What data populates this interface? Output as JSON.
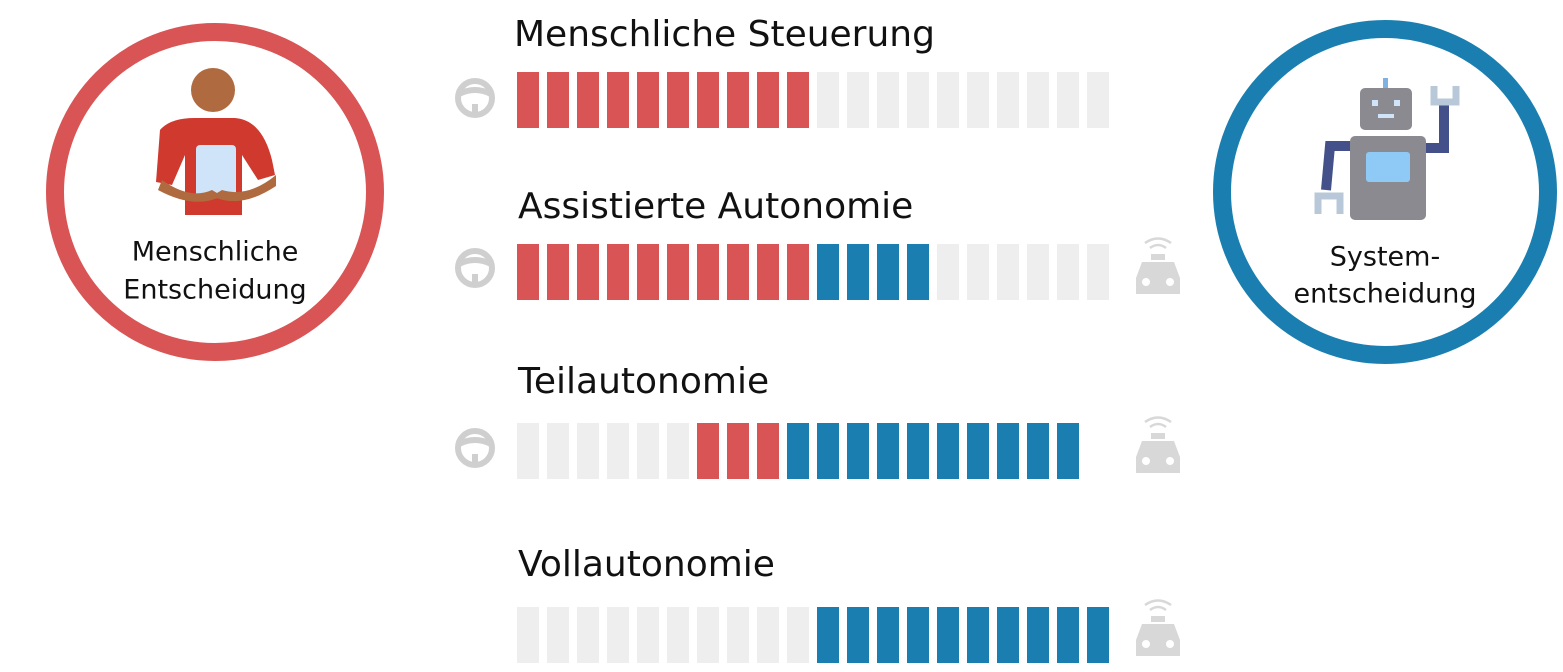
{
  "left_circle": {
    "lines": [
      "Menschliche",
      "Entscheidung"
    ],
    "color": "#d95454"
  },
  "right_circle": {
    "lines": [
      "System-",
      "entscheidung"
    ],
    "color": "#1a7fb0"
  },
  "rows": [
    {
      "title": "Menschliche Steuerung",
      "segments": [
        {
          "color": "#d95454",
          "count": 10
        },
        {
          "color": "#eeeeee",
          "count": 10
        }
      ]
    },
    {
      "title": "Assistierte Autonomie",
      "segments": [
        {
          "color": "#d95454",
          "count": 10
        },
        {
          "color": "#1a7fb0",
          "count": 4
        },
        {
          "color": "#eeeeee",
          "count": 6
        }
      ]
    },
    {
      "title": "Teilautonomie",
      "segments": [
        {
          "color": "#eeeeee",
          "count": 6
        },
        {
          "color": "#d95454",
          "count": 3
        },
        {
          "color": "#1a7fb0",
          "count": 10
        }
      ]
    },
    {
      "title": "Vollautonomie",
      "segments": [
        {
          "color": "#eeeeee",
          "count": 10
        },
        {
          "color": "#1a7fb0",
          "count": 10
        }
      ]
    }
  ]
}
